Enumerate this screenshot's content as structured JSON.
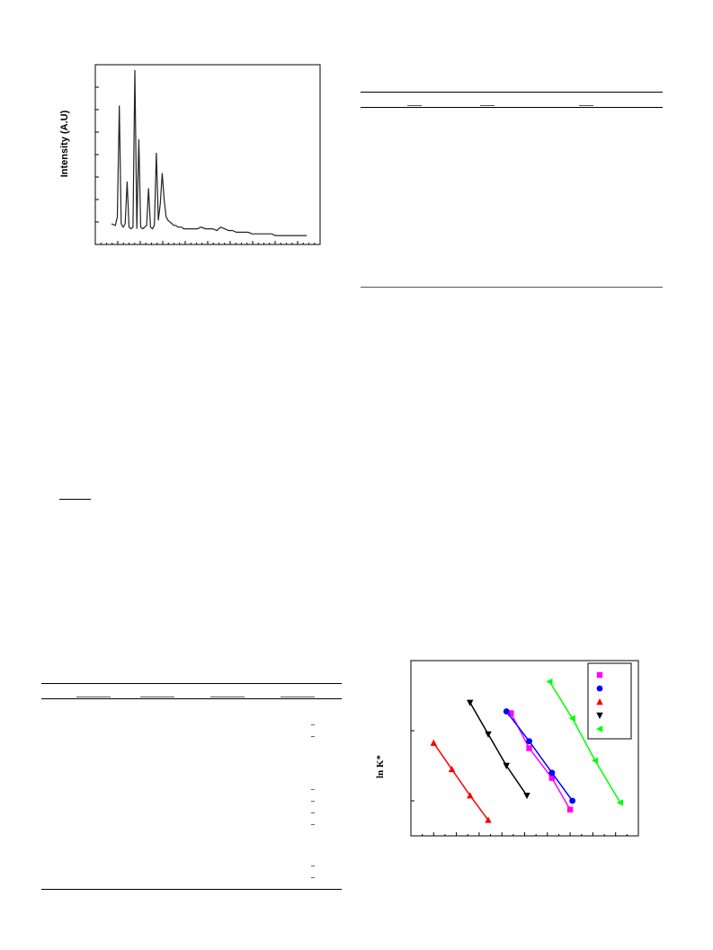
{
  "xrd_figure": {
    "ylabel": "Intensity (A.U)"
  },
  "kinetics_figure": {
    "ylabel": "ln K*",
    "legend_colors": [
      "#ff00ff",
      "#0000ff",
      "#ff0000",
      "#000000",
      "#00ff00"
    ]
  },
  "chart_data": [
    {
      "type": "line",
      "title": "",
      "xlabel": "",
      "ylabel": "Intensity (A.U)",
      "series": [
        {
          "x": [
            0,
            2,
            3,
            4,
            5,
            6,
            7,
            8,
            9,
            10,
            11,
            12,
            13,
            14,
            15,
            16,
            17,
            18,
            19,
            20,
            21,
            22,
            23,
            24,
            25,
            26,
            27,
            28,
            29,
            30,
            31,
            32,
            33,
            34,
            35,
            36,
            37,
            38,
            39,
            40,
            42,
            44,
            46,
            48,
            50,
            52,
            54,
            56,
            58,
            60,
            62,
            64,
            66,
            68,
            70,
            72,
            74,
            76,
            78,
            80,
            82,
            84,
            86,
            88,
            90,
            92,
            94,
            96,
            98,
            100
          ],
          "values": [
            8,
            7,
            12,
            78,
            8,
            6,
            8,
            33,
            6,
            5,
            6,
            99,
            5,
            58,
            6,
            5,
            6,
            7,
            29,
            6,
            5,
            7,
            50,
            10,
            20,
            38,
            22,
            12,
            10,
            9,
            8,
            7,
            7,
            6,
            6,
            6,
            5,
            5,
            5,
            5,
            5,
            5,
            6,
            5,
            5,
            5,
            4,
            6,
            5,
            4,
            4,
            3,
            3,
            3,
            3,
            2,
            2,
            2,
            2,
            2,
            2,
            1,
            1,
            1,
            1,
            1,
            1,
            1,
            1,
            1
          ]
        }
      ],
      "ylim": [
        0,
        100
      ]
    },
    {
      "type": "scatter",
      "title": "",
      "xlabel": "",
      "ylabel": "ln K*",
      "xlim": [
        0,
        10
      ],
      "ylim": [
        0,
        10
      ],
      "grid": false,
      "legend_position": "top-right",
      "series": [
        {
          "color": "#ff00ff",
          "marker": "square",
          "x": [
            4.4,
            5.2,
            6.2,
            7.0
          ],
          "y": [
            7.0,
            5.0,
            3.3,
            1.5
          ]
        },
        {
          "color": "#0000ff",
          "marker": "circle",
          "x": [
            4.2,
            5.2,
            6.2,
            7.1
          ],
          "y": [
            7.1,
            5.4,
            3.6,
            2.0
          ]
        },
        {
          "color": "#ff0000",
          "marker": "triangle-up",
          "x": [
            1.0,
            1.8,
            2.6,
            3.4
          ],
          "y": [
            5.3,
            3.8,
            2.3,
            0.9
          ]
        },
        {
          "color": "#000000",
          "marker": "triangle-down",
          "x": [
            2.6,
            3.4,
            4.2,
            5.1
          ],
          "y": [
            7.6,
            5.8,
            4.0,
            2.3
          ]
        },
        {
          "color": "#00ff00",
          "marker": "triangle-left",
          "x": [
            6.1,
            7.1,
            8.1,
            9.2
          ],
          "y": [
            8.8,
            6.7,
            4.3,
            1.9
          ]
        }
      ]
    }
  ]
}
